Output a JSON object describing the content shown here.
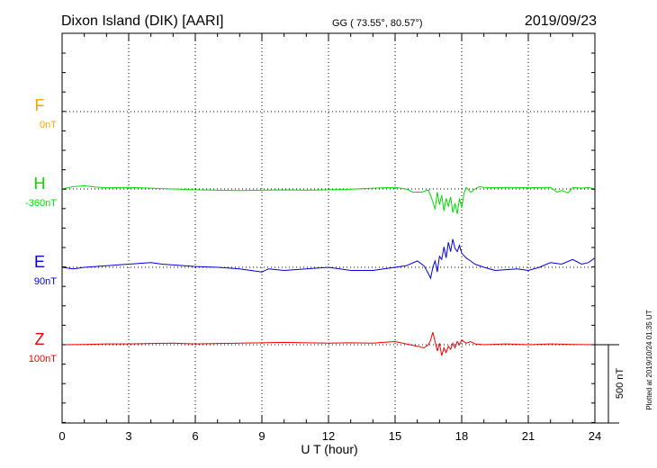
{
  "header": {
    "station": "Dixon Island (DIK)  [AARI]",
    "coords": "GG ( 73.55°,  80.57°)",
    "date": "2019/09/23"
  },
  "side_note": "Plotted at 2019/10/24 01:35 UT",
  "scale_label": "500 nT",
  "chart_data": {
    "type": "line",
    "xlabel": "U T (hour)",
    "xlim": [
      0,
      24
    ],
    "xticks": [
      "0",
      "3",
      "6",
      "9",
      "12",
      "15",
      "18",
      "21",
      "24"
    ],
    "series": [
      {
        "name": "F",
        "base": "0nT",
        "color": "#f5a800",
        "x": [],
        "values": []
      },
      {
        "name": "H",
        "base": "-360nT",
        "color": "#00dd00",
        "x": [
          0,
          0.5,
          1,
          1.5,
          2,
          3,
          4,
          5,
          6,
          7,
          8,
          9,
          10,
          11,
          12,
          13,
          14,
          15,
          15.5,
          15.8,
          16.2,
          16.5,
          16.7,
          16.8,
          16.9,
          17.0,
          17.1,
          17.2,
          17.3,
          17.4,
          17.5,
          17.6,
          17.7,
          17.8,
          17.9,
          18.0,
          18.1,
          18.2,
          18.4,
          18.6,
          18.8,
          19,
          19.5,
          20,
          21,
          22,
          22.3,
          22.5,
          22.8,
          23,
          23.4,
          23.7,
          24
        ],
        "values": [
          0,
          15,
          20,
          12,
          8,
          10,
          5,
          0,
          -5,
          -8,
          -10,
          -8,
          -6,
          -8,
          -5,
          -2,
          5,
          10,
          0,
          -20,
          -20,
          -5,
          -80,
          -130,
          -20,
          -100,
          -40,
          -140,
          -60,
          -110,
          -50,
          -150,
          -90,
          -160,
          -60,
          -120,
          -30,
          10,
          -20,
          0,
          15,
          10,
          8,
          10,
          8,
          10,
          -20,
          -10,
          -25,
          10,
          5,
          10,
          0
        ]
      },
      {
        "name": "E",
        "base": "90nT",
        "color": "#0000dd",
        "x": [
          0,
          0.5,
          1,
          2,
          3,
          4,
          4.5,
          5,
          6,
          7,
          8,
          8.5,
          9,
          9.3,
          10,
          11,
          12,
          13,
          14,
          15,
          15.5,
          16,
          16.3,
          16.5,
          16.6,
          16.7,
          16.8,
          16.9,
          17.0,
          17.1,
          17.2,
          17.3,
          17.4,
          17.5,
          17.6,
          17.7,
          17.8,
          17.9,
          18.0,
          18.2,
          18.4,
          18.6,
          19,
          19.5,
          20,
          20.5,
          21,
          21.5,
          22,
          22.5,
          23,
          23.4,
          23.7,
          24
        ],
        "values": [
          0,
          -10,
          0,
          10,
          20,
          30,
          20,
          15,
          5,
          0,
          -10,
          -20,
          -30,
          -10,
          -20,
          -10,
          0,
          -20,
          -20,
          0,
          10,
          40,
          10,
          -40,
          -70,
          0,
          40,
          -30,
          70,
          50,
          130,
          60,
          160,
          100,
          180,
          120,
          100,
          140,
          90,
          60,
          40,
          20,
          0,
          -20,
          -15,
          -10,
          -20,
          0,
          30,
          20,
          50,
          20,
          30,
          60
        ]
      },
      {
        "name": "Z",
        "base": "100nT",
        "color": "#ee0000",
        "x": [
          0,
          1,
          2,
          3,
          4,
          5,
          6,
          7,
          8,
          9,
          10,
          11,
          12,
          13,
          14,
          15,
          15.5,
          16,
          16.3,
          16.5,
          16.6,
          16.7,
          16.8,
          16.9,
          17.0,
          17.1,
          17.2,
          17.3,
          17.4,
          17.5,
          17.6,
          17.7,
          17.8,
          17.9,
          18.0,
          18.2,
          18.4,
          18.6,
          19,
          20,
          21,
          22,
          23,
          24
        ],
        "values": [
          0,
          2,
          5,
          5,
          8,
          10,
          5,
          8,
          10,
          12,
          15,
          12,
          10,
          12,
          10,
          20,
          5,
          -10,
          -20,
          0,
          30,
          80,
          20,
          -40,
          10,
          -70,
          -20,
          -50,
          -10,
          -30,
          10,
          -20,
          20,
          0,
          30,
          10,
          20,
          5,
          0,
          5,
          0,
          5,
          2,
          0
        ]
      }
    ]
  }
}
